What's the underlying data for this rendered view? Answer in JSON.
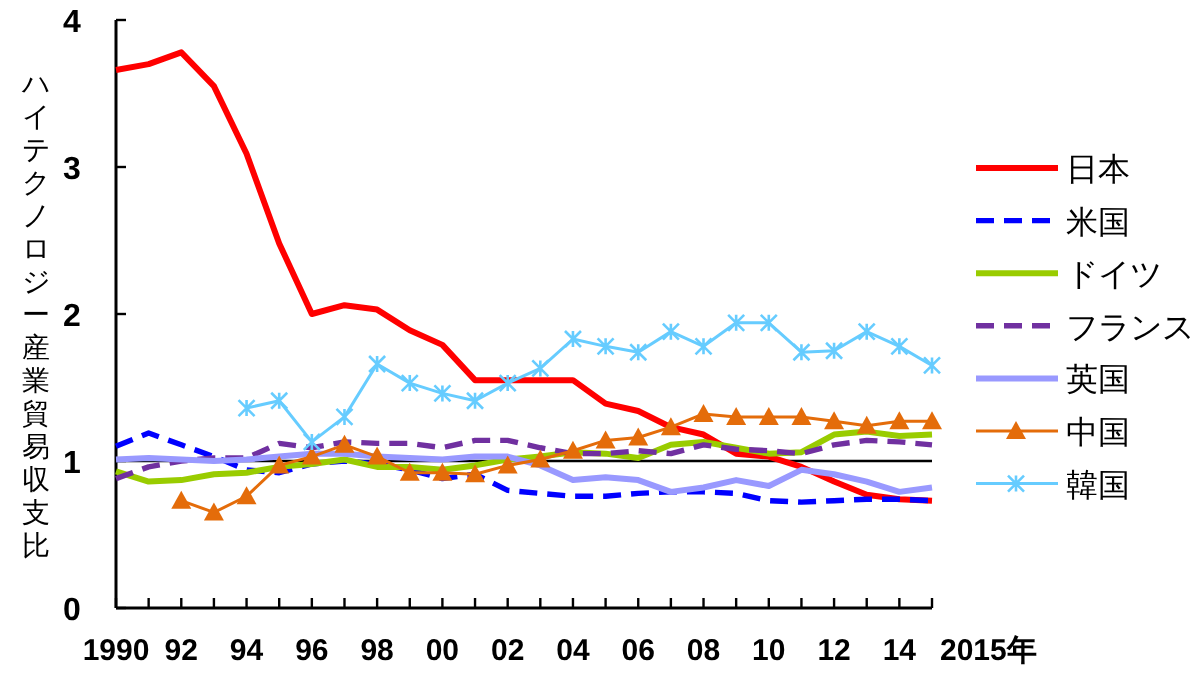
{
  "chart_data": {
    "type": "line",
    "ylabel": "ハイテクノロジー産業貿易収支比",
    "x": [
      1990,
      1991,
      1992,
      1993,
      1994,
      1995,
      1996,
      1997,
      1998,
      1999,
      2000,
      2001,
      2002,
      2003,
      2004,
      2005,
      2006,
      2007,
      2008,
      2009,
      2010,
      2011,
      2012,
      2013,
      2014,
      2015
    ],
    "xlim": [
      1990,
      2015
    ],
    "xticks": [
      {
        "value": 1990,
        "label": "1990"
      },
      {
        "value": 1991,
        "label": null
      },
      {
        "value": 1992,
        "label": "92"
      },
      {
        "value": 1993,
        "label": null
      },
      {
        "value": 1994,
        "label": "94"
      },
      {
        "value": 1995,
        "label": null
      },
      {
        "value": 1996,
        "label": "96"
      },
      {
        "value": 1997,
        "label": null
      },
      {
        "value": 1998,
        "label": "98"
      },
      {
        "value": 1999,
        "label": null
      },
      {
        "value": 2000,
        "label": "00"
      },
      {
        "value": 2001,
        "label": null
      },
      {
        "value": 2002,
        "label": "02"
      },
      {
        "value": 2003,
        "label": null
      },
      {
        "value": 2004,
        "label": "04"
      },
      {
        "value": 2005,
        "label": null
      },
      {
        "value": 2006,
        "label": "06"
      },
      {
        "value": 2007,
        "label": null
      },
      {
        "value": 2008,
        "label": "08"
      },
      {
        "value": 2009,
        "label": null
      },
      {
        "value": 2010,
        "label": "10"
      },
      {
        "value": 2011,
        "label": null
      },
      {
        "value": 2012,
        "label": "12"
      },
      {
        "value": 2013,
        "label": null
      },
      {
        "value": 2014,
        "label": "14"
      },
      {
        "value": 2015,
        "label": null
      }
    ],
    "annotations": [
      "2015年"
    ],
    "ylim": [
      0,
      4
    ],
    "yticks": [
      0,
      1,
      2,
      3,
      4
    ],
    "grid": false,
    "legend": "right",
    "ref_lines": [
      {
        "axis": "y",
        "value": 1,
        "color": "#000000"
      }
    ],
    "series": [
      {
        "name": "日本",
        "color": "#ff0000",
        "line_style": "solid",
        "marker": "none",
        "values": [
          3.66,
          3.7,
          3.78,
          3.55,
          3.09,
          2.48,
          2.0,
          2.06,
          2.03,
          1.89,
          1.79,
          1.55,
          1.55,
          1.55,
          1.55,
          1.39,
          1.34,
          1.23,
          1.18,
          1.05,
          1.03,
          0.96,
          0.86,
          0.77,
          0.74,
          0.73
        ]
      },
      {
        "name": "米国",
        "color": "#0000ff",
        "line_style": "dashed",
        "marker": "none",
        "values": [
          1.1,
          1.19,
          1.11,
          1.03,
          0.94,
          0.92,
          0.98,
          1.0,
          0.98,
          0.94,
          0.88,
          0.91,
          0.8,
          0.78,
          0.76,
          0.76,
          0.78,
          0.79,
          0.79,
          0.78,
          0.73,
          0.72,
          0.73,
          0.74,
          0.74,
          0.73
        ]
      },
      {
        "name": "ドイツ",
        "color": "#99cc00",
        "line_style": "solid",
        "marker": "none",
        "values": [
          0.93,
          0.86,
          0.87,
          0.91,
          0.92,
          0.96,
          0.98,
          1.01,
          0.96,
          0.96,
          0.94,
          0.97,
          1.01,
          1.03,
          1.06,
          1.05,
          1.02,
          1.11,
          1.13,
          1.09,
          1.05,
          1.06,
          1.18,
          1.2,
          1.17,
          1.18
        ]
      },
      {
        "name": "フランス",
        "color": "#7030a0",
        "line_style": "dashed",
        "marker": "none",
        "values": [
          0.88,
          0.96,
          1.0,
          1.02,
          1.02,
          1.12,
          1.09,
          1.13,
          1.12,
          1.12,
          1.09,
          1.14,
          1.14,
          1.09,
          1.05,
          1.05,
          1.07,
          1.05,
          1.11,
          1.08,
          1.07,
          1.05,
          1.11,
          1.14,
          1.13,
          1.11
        ]
      },
      {
        "name": "英国",
        "color": "#9999ff",
        "line_style": "solid",
        "marker": "none",
        "values": [
          1.01,
          1.02,
          1.01,
          1.0,
          1.01,
          1.03,
          1.05,
          1.05,
          1.03,
          1.02,
          1.01,
          1.03,
          1.03,
          0.97,
          0.87,
          0.89,
          0.87,
          0.79,
          0.82,
          0.87,
          0.83,
          0.94,
          0.91,
          0.86,
          0.79,
          0.82
        ]
      },
      {
        "name": "中国",
        "color": "#e46c0a",
        "line_style": "solid",
        "marker": "triangle",
        "values": [
          null,
          null,
          0.73,
          0.65,
          0.76,
          0.97,
          1.03,
          1.11,
          1.03,
          0.92,
          0.92,
          0.91,
          0.97,
          1.01,
          1.07,
          1.14,
          1.16,
          1.23,
          1.32,
          1.3,
          1.3,
          1.3,
          1.27,
          1.24,
          1.27,
          1.27
        ]
      },
      {
        "name": "韓国",
        "color": "#66ccff",
        "line_style": "solid",
        "marker": "cross",
        "values": [
          null,
          null,
          null,
          null,
          1.36,
          1.41,
          1.13,
          1.3,
          1.66,
          1.53,
          1.46,
          1.41,
          1.53,
          1.63,
          1.83,
          1.78,
          1.74,
          1.88,
          1.78,
          1.94,
          1.94,
          1.74,
          1.75,
          1.88,
          1.78,
          1.65
        ]
      }
    ]
  }
}
